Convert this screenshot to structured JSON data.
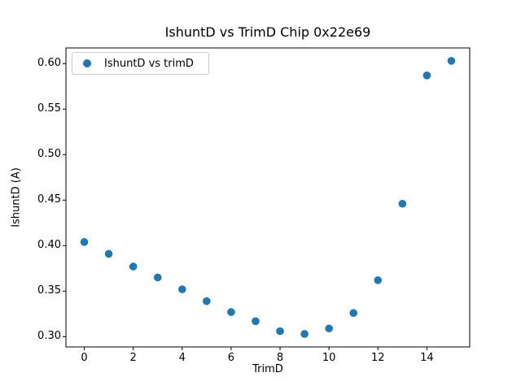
{
  "figure": {
    "title": "IshuntD vs TrimD Chip 0x22e69",
    "xlabel": "TrimD",
    "ylabel": "IshuntD (A)",
    "background_color": "#ffffff",
    "spine_color": "#000000"
  },
  "legend": {
    "label": "IshuntD vs trimD",
    "position": "upper left",
    "marker_color": "#1f77b4",
    "border_color": "#cccccc"
  },
  "chart_data": {
    "type": "scatter",
    "title": "IshuntD vs TrimD Chip 0x22e69",
    "xlabel": "TrimD",
    "ylabel": "IshuntD (A)",
    "legend_entries": [
      "IshuntD vs trimD"
    ],
    "legend_position": "upper left",
    "marker_color": "#1f77b4",
    "marker_radius_px": 4.8,
    "grid": false,
    "x": [
      0,
      1,
      2,
      3,
      4,
      5,
      6,
      7,
      8,
      9,
      10,
      11,
      12,
      13,
      14,
      15
    ],
    "y": [
      0.404,
      0.391,
      0.377,
      0.365,
      0.352,
      0.339,
      0.327,
      0.317,
      0.306,
      0.303,
      0.309,
      0.326,
      0.362,
      0.446,
      0.587,
      0.603
    ],
    "xlim": [
      -0.75,
      15.75
    ],
    "ylim": [
      0.2887,
      0.6172
    ],
    "xticks": [
      0,
      2,
      4,
      6,
      8,
      10,
      12,
      14
    ],
    "yticks": [
      0.3,
      0.35,
      0.4,
      0.45,
      0.5,
      0.55,
      0.6
    ],
    "ytick_format_decimals": 2
  }
}
